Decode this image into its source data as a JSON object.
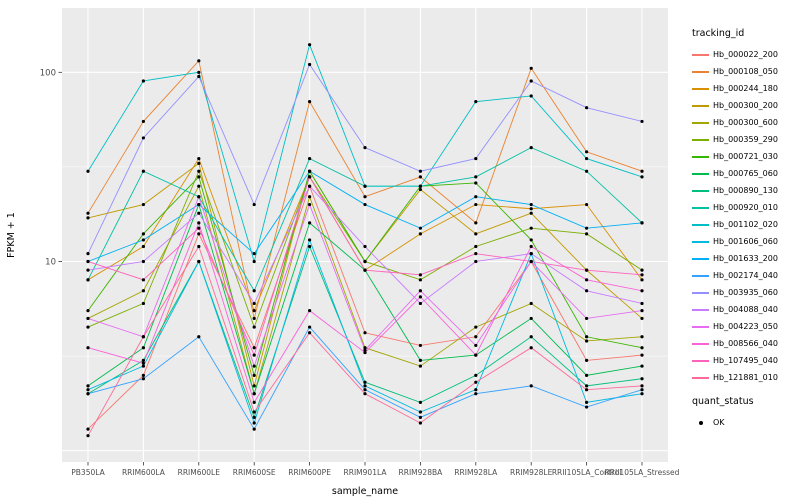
{
  "legend": {
    "title": "tracking_id"
  },
  "legend2": {
    "title": "quant_status",
    "item_label": "OK"
  },
  "colors": {
    "panel": "#EBEBEB",
    "grid_major": "#FFFFFF",
    "grid_minor": "#F7F7F7",
    "tick_text": "#4D4D4D",
    "tick_mark": "#333333",
    "point": "#000000"
  },
  "chart_data": {
    "type": "line",
    "title": "",
    "xlabel": "sample_name",
    "ylabel": "FPKM + 1",
    "y_scale": "log10",
    "ylim": [
      0.9,
      180
    ],
    "y_tick_labels": [
      10,
      100
    ],
    "grid": true,
    "legend_position": "right",
    "point_marker": "black dot on every vertex (quant_status = OK)",
    "categories": [
      "PB350LA",
      "RRIM600LA",
      "RRIM600LE",
      "RRIM600SE",
      "RRIM600PE",
      "RRIM901LA",
      "RRIM928BA",
      "RRIM928LA",
      "RRIM928LE",
      "RRII105LA_Control",
      "RRII105LA_Stressed"
    ],
    "series": [
      {
        "name": "Hb_000022_200",
        "color": "#F8766D",
        "values": [
          1.3,
          2.5,
          14,
          3.5,
          25,
          4.2,
          3.6,
          4.0,
          10,
          3.0,
          3.2
        ]
      },
      {
        "name": "Hb_000108_050",
        "color": "#EA8331",
        "values": [
          18,
          55,
          115,
          5,
          70,
          22,
          28,
          16,
          105,
          38,
          30
        ]
      },
      {
        "name": "Hb_000244_180",
        "color": "#D89000",
        "values": [
          8,
          12,
          35,
          5.5,
          28,
          9,
          14,
          20,
          19,
          20,
          8
        ]
      },
      {
        "name": "Hb_000300_200",
        "color": "#C09B00",
        "values": [
          17,
          20,
          33,
          2.2,
          30,
          10,
          24,
          14,
          18,
          9,
          5
        ]
      },
      {
        "name": "Hb_000300_600",
        "color": "#A3A500",
        "values": [
          5,
          7,
          25,
          2.0,
          22,
          3.5,
          2.8,
          4.5,
          6,
          3.8,
          4
        ]
      },
      {
        "name": "Hb_000359_290",
        "color": "#7CAE00",
        "values": [
          4.5,
          6,
          30,
          4.5,
          28,
          10,
          8,
          12,
          15,
          14,
          9
        ]
      },
      {
        "name": "Hb_000721_030",
        "color": "#39B600",
        "values": [
          5.5,
          14,
          28,
          2.5,
          30,
          10,
          25,
          26,
          13,
          4,
          3.5
        ]
      },
      {
        "name": "Hb_000765_060",
        "color": "#00BB4E",
        "values": [
          2.2,
          3.5,
          20,
          2.0,
          16,
          9,
          3.0,
          3.2,
          5,
          2.5,
          2.8
        ]
      },
      {
        "name": "Hb_000890_130",
        "color": "#00BF7D",
        "values": [
          2.0,
          3.0,
          10,
          1.5,
          12,
          2.3,
          1.8,
          2.5,
          4,
          2.2,
          2.4
        ]
      },
      {
        "name": "Hb_000920_010",
        "color": "#00C1A3",
        "values": [
          8,
          30,
          22,
          7,
          35,
          25,
          25,
          28,
          40,
          30,
          16
        ]
      },
      {
        "name": "Hb_001102_020",
        "color": "#00BFC4",
        "values": [
          30,
          90,
          100,
          10,
          140,
          25,
          25,
          70,
          75,
          35,
          28
        ]
      },
      {
        "name": "Hb_001606_060",
        "color": "#00BAE0",
        "values": [
          2.1,
          2.8,
          10,
          1.4,
          13,
          2.2,
          1.6,
          2.1,
          11,
          1.8,
          2.0
        ]
      },
      {
        "name": "Hb_001633_200",
        "color": "#00B0F6",
        "values": [
          10,
          13,
          20,
          11,
          30,
          20,
          15,
          22,
          20,
          15,
          16
        ]
      },
      {
        "name": "Hb_002174_040",
        "color": "#35A2FF",
        "values": [
          2.0,
          2.4,
          4,
          1.3,
          4.5,
          2.1,
          1.5,
          2.0,
          2.2,
          1.7,
          2.1
        ]
      },
      {
        "name": "Hb_003935_060",
        "color": "#9590FF",
        "values": [
          11,
          45,
          95,
          20,
          110,
          40,
          30,
          35,
          90,
          65,
          55
        ]
      },
      {
        "name": "Hb_004088_040",
        "color": "#C77CFF",
        "values": [
          9,
          10,
          18,
          6,
          25,
          12,
          6,
          10,
          11,
          7,
          6
        ]
      },
      {
        "name": "Hb_004223_050",
        "color": "#E76BF3",
        "values": [
          5,
          4,
          22,
          2.8,
          20,
          3.4,
          7,
          3.6,
          10,
          5,
          5.5
        ]
      },
      {
        "name": "Hb_008566_040",
        "color": "#FA62DB",
        "values": [
          3.5,
          2.9,
          16,
          1.8,
          5.5,
          3.3,
          6.5,
          3.2,
          12,
          8,
          7
        ]
      },
      {
        "name": "Hb_107495_040",
        "color": "#FF62BC",
        "values": [
          10,
          8,
          15,
          3.2,
          28,
          9,
          8.5,
          11,
          10,
          9,
          8.5
        ]
      },
      {
        "name": "Hb_121881_010",
        "color": "#FF6A98",
        "values": [
          1.2,
          4,
          12,
          1.6,
          4.2,
          2.0,
          1.4,
          2.3,
          3.5,
          2.1,
          2.2
        ]
      }
    ]
  }
}
